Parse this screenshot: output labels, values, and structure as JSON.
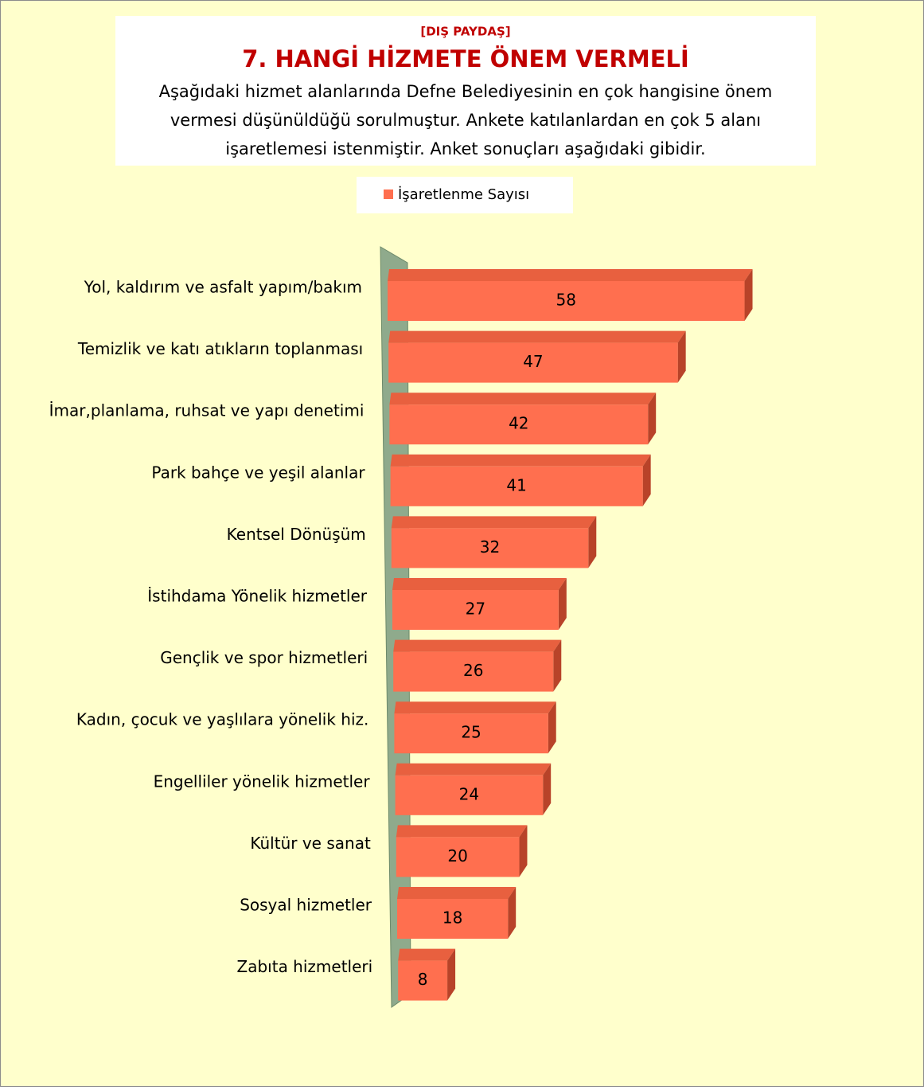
{
  "chart_data": {
    "type": "bar",
    "orientation": "horizontal",
    "kicker": "[DIŞ PAYDAŞ]",
    "title": "7. HANGİ  HİZMETE ÖNEM VERMELİ",
    "subtitle": [
      "Aşağıdaki hizmet alanlarında Defne Belediyesinin en çok hangisine önem",
      "vermesi düşünüldüğü sorulmuştur.  Ankete katılanlardan en çok 5 alanı",
      "işaretlemesi istenmiştir. Anket sonuçları aşağıdaki gibidir."
    ],
    "categories": [
      "Yol, kaldırım ve asfalt yapım/bakım",
      "Temizlik ve katı atıkların toplanması",
      "İmar,planlama, ruhsat ve yapı denetimi",
      "Park bahçe ve yeşil alanlar",
      "Kentsel Dönüşüm",
      "İstihdama Yönelik hizmetler",
      "Gençlik ve spor hizmetleri",
      "Kadın, çocuk ve yaşlılara yönelik hiz.",
      "Engelliler yönelik hizmetler",
      "Kültür ve sanat",
      "Sosyal hizmetler",
      "Zabıta hizmetleri"
    ],
    "series": [
      {
        "name": "İşaretlenme Sayısı",
        "color": "#ff6f4f",
        "values": [
          58,
          47,
          42,
          41,
          32,
          27,
          26,
          25,
          24,
          20,
          18,
          8
        ]
      }
    ],
    "xlim": [
      0,
      60
    ],
    "legend": "top"
  }
}
